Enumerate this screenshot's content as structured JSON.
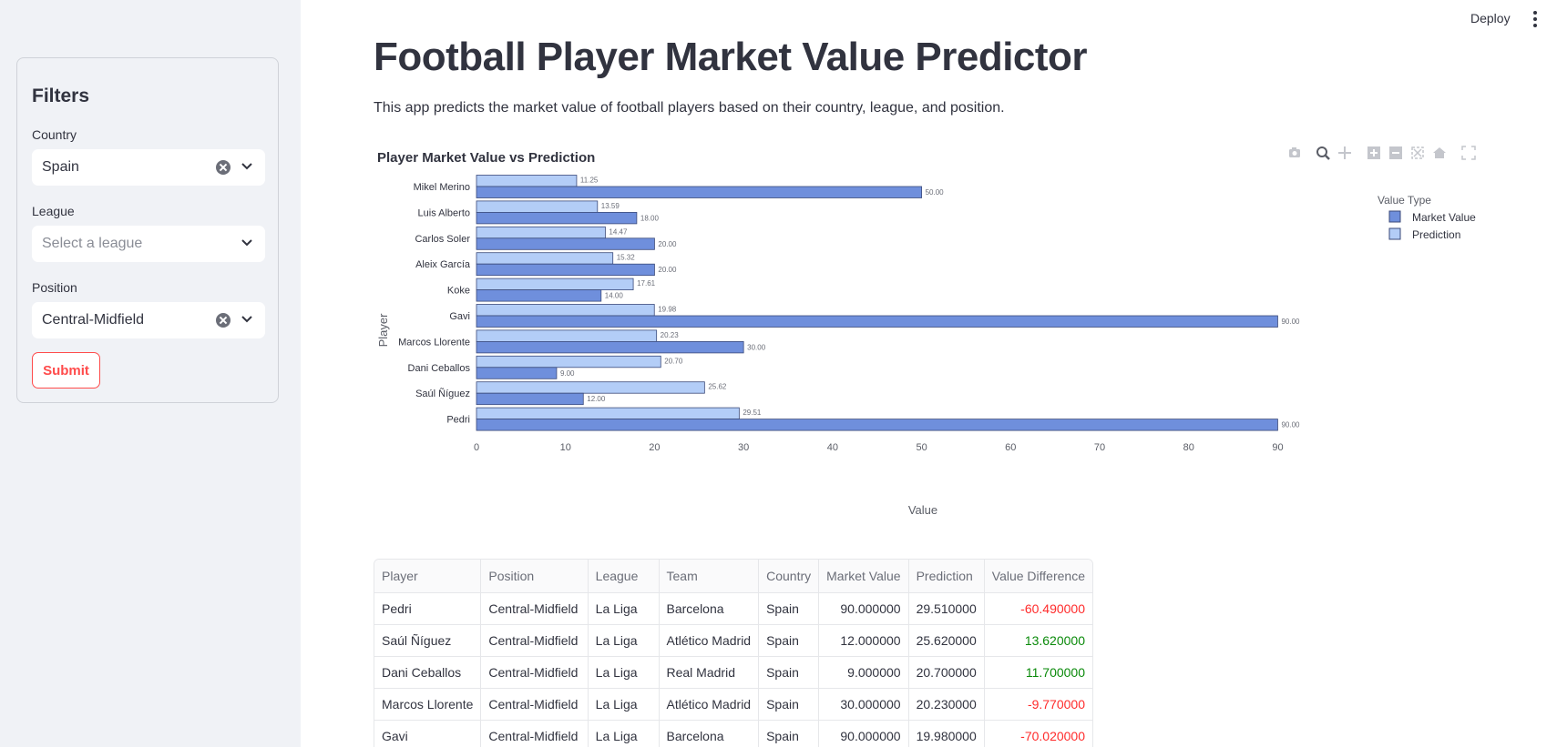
{
  "header": {
    "deploy_label": "Deploy",
    "menu_icon": "vertical-dots-icon"
  },
  "sidebar": {
    "title": "Filters",
    "country": {
      "label": "Country",
      "value": "Spain"
    },
    "league": {
      "label": "League",
      "placeholder": "Select a league"
    },
    "position": {
      "label": "Position",
      "value": "Central-Midfield"
    },
    "submit_label": "Submit"
  },
  "main": {
    "title": "Football Player Market Value Predictor",
    "description": "This app predicts the market value of football players based on their country, league, and position."
  },
  "chart_data": {
    "type": "bar",
    "orientation": "horizontal",
    "title": "Player Market Value vs Prediction",
    "xlabel": "Value",
    "ylabel": "Player",
    "xlim": [
      0,
      92
    ],
    "xticks": [
      0,
      10,
      20,
      30,
      40,
      50,
      60,
      70,
      80,
      90
    ],
    "legend_title": "Value Type",
    "legend_position": "top-right",
    "categories": [
      "Mikel Merino",
      "Luis Alberto",
      "Carlos Soler",
      "Aleix García",
      "Koke",
      "Gavi",
      "Marcos Llorente",
      "Dani Ceballos",
      "Saúl Ñíguez",
      "Pedri"
    ],
    "series": [
      {
        "name": "Market Value",
        "color": "#6f8fdc",
        "values": [
          50.0,
          18.0,
          20.0,
          20.0,
          14.0,
          90.0,
          30.0,
          9.0,
          12.0,
          90.0
        ],
        "labels": [
          "50.00",
          "18.00",
          "20.00",
          "20.00",
          "14.00",
          "90.00",
          "30.00",
          "9.00",
          "12.00",
          "90.00"
        ]
      },
      {
        "name": "Prediction",
        "color": "#b3cdf7",
        "values": [
          11.25,
          13.59,
          14.47,
          15.32,
          17.61,
          19.98,
          20.23,
          20.7,
          25.62,
          29.51
        ],
        "labels": [
          "11.25",
          "13.59",
          "14.47",
          "15.32",
          "17.61",
          "19.98",
          "20.23",
          "20.70",
          "25.62",
          "29.51"
        ]
      }
    ]
  },
  "table": {
    "columns": [
      "Player",
      "Position",
      "League",
      "Team",
      "Country",
      "Market Value",
      "Prediction",
      "Value Difference"
    ],
    "rows": [
      [
        "Pedri",
        "Central-Midfield",
        "La Liga",
        "Barcelona",
        "Spain",
        "90.000000",
        "29.510000",
        "-60.490000"
      ],
      [
        "Saúl Ñíguez",
        "Central-Midfield",
        "La Liga",
        "Atlético Madrid",
        "Spain",
        "12.000000",
        "25.620000",
        "13.620000"
      ],
      [
        "Dani Ceballos",
        "Central-Midfield",
        "La Liga",
        "Real Madrid",
        "Spain",
        "9.000000",
        "20.700000",
        "11.700000"
      ],
      [
        "Marcos Llorente",
        "Central-Midfield",
        "La Liga",
        "Atlético Madrid",
        "Spain",
        "30.000000",
        "20.230000",
        "-9.770000"
      ],
      [
        "Gavi",
        "Central-Midfield",
        "La Liga",
        "Barcelona",
        "Spain",
        "90.000000",
        "19.980000",
        "-70.020000"
      ]
    ],
    "negative_color": "#ff2b2b",
    "positive_color": "#0a8a0a"
  }
}
